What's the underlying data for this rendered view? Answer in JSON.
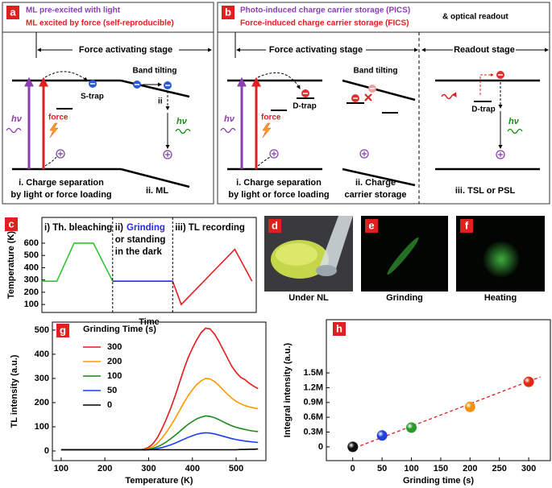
{
  "panel_a": {
    "label": "a",
    "titles": [
      "ML pre-excited with light",
      "ML excited by force (self-reproducible)"
    ],
    "stage": "Force activating stage",
    "band_tilting": "Band tilting",
    "trap": "S-trap",
    "step": "ii",
    "excitation": "hν",
    "force": "force",
    "emission": "hν",
    "caption_i": [
      "i. Charge separation",
      "by light or force loading"
    ],
    "caption_ii": "ii. ML"
  },
  "panel_b": {
    "label": "b",
    "titles": [
      "Photo-induced charge carrier storage (PICS)",
      "Force-induced charge carrier storage (FICS)"
    ],
    "readout_note": "& optical readout",
    "stage_force": "Force activating stage",
    "stage_readout": "Readout stage",
    "band_tilting": "Band tilting",
    "trap": "D-trap",
    "excitation": "hν",
    "force": "force",
    "caption_i": [
      "i. Charge separation",
      "by light or force loading"
    ],
    "caption_ii": [
      "ii. Charge",
      "carrier storage"
    ],
    "readout_trap": "D-trap",
    "emission": "hν",
    "caption_iii": "iii. TSL or PSL"
  },
  "photos": [
    {
      "label": "d",
      "caption": "Under NL"
    },
    {
      "label": "e",
      "caption": "Grinding"
    },
    {
      "label": "f",
      "caption": "Heating"
    }
  ],
  "chart_data": [
    {
      "type": "line",
      "label": "c",
      "ylabel": "Temperature (K)",
      "xlabel": "Time",
      "xlim": [
        0,
        10
      ],
      "ylim": [
        35,
        810
      ],
      "yticks": [
        100,
        200,
        300,
        400,
        500,
        600
      ],
      "phases": [
        {
          "lines": [
            "i) Th. bleaching"
          ]
        },
        {
          "lines": [
            "ii)",
            "or standing",
            "in the dark"
          ],
          "emphasis": "Grinding"
        },
        {
          "lines": [
            "iii) TL recording"
          ]
        }
      ],
      "series": [
        {
          "color": "#33c433",
          "x": [
            0,
            0.7,
            1.5,
            2.4,
            3.3
          ],
          "values": [
            290,
            290,
            600,
            600,
            290
          ]
        },
        {
          "color": "#2a2ae0",
          "x": [
            3.3,
            6.1
          ],
          "values": [
            290,
            290
          ]
        },
        {
          "color": "#e62020",
          "x": [
            6.1,
            6.5,
            9.0,
            9.8
          ],
          "values": [
            290,
            100,
            550,
            290
          ]
        }
      ]
    },
    {
      "type": "line",
      "label": "g",
      "ylabel": "TL intensity (a.u.)",
      "xlabel": "Temperature (K)",
      "legend_title": "Grinding Time (s)",
      "legend": "upper-left",
      "xlim": [
        80,
        568
      ],
      "ylim": [
        -40,
        533
      ],
      "xticks": [
        100,
        200,
        300,
        400,
        500
      ],
      "yticks": [
        0,
        100,
        200,
        300,
        400,
        500
      ],
      "x": [
        100,
        110,
        120,
        130,
        140,
        150,
        160,
        170,
        180,
        190,
        200,
        210,
        220,
        230,
        240,
        250,
        260,
        270,
        280,
        290,
        300,
        310,
        320,
        330,
        340,
        350,
        360,
        370,
        380,
        390,
        400,
        410,
        420,
        430,
        440,
        450,
        460,
        470,
        480,
        490,
        500,
        510,
        520,
        530,
        540,
        550
      ],
      "series": [
        {
          "name": "300",
          "color": "#e41a1c",
          "values": [
            5,
            5,
            5,
            5,
            5,
            5,
            5,
            5,
            5,
            5,
            5,
            5,
            5,
            5,
            5,
            5,
            5,
            5,
            5,
            8,
            15,
            30,
            55,
            90,
            130,
            175,
            225,
            280,
            335,
            385,
            425,
            460,
            490,
            508,
            505,
            485,
            455,
            420,
            385,
            350,
            325,
            305,
            295,
            280,
            268,
            258
          ]
        },
        {
          "name": "200",
          "color": "#ff9900",
          "values": [
            5,
            5,
            5,
            5,
            5,
            5,
            5,
            5,
            5,
            5,
            5,
            5,
            5,
            5,
            5,
            5,
            5,
            5,
            5,
            6,
            10,
            18,
            32,
            52,
            76,
            103,
            133,
            165,
            198,
            228,
            253,
            275,
            290,
            300,
            298,
            288,
            272,
            253,
            235,
            218,
            205,
            195,
            188,
            182,
            178,
            175
          ]
        },
        {
          "name": "100",
          "color": "#1a8a1a",
          "values": [
            5,
            5,
            5,
            5,
            5,
            5,
            5,
            5,
            5,
            5,
            5,
            5,
            5,
            5,
            5,
            5,
            5,
            5,
            5,
            5,
            7,
            11,
            17,
            26,
            37,
            50,
            64,
            79,
            95,
            110,
            122,
            133,
            140,
            145,
            143,
            138,
            130,
            121,
            112,
            104,
            98,
            93,
            89,
            85,
            82,
            80
          ]
        },
        {
          "name": "50",
          "color": "#1c3cff",
          "values": [
            5,
            5,
            5,
            5,
            5,
            5,
            5,
            5,
            5,
            5,
            5,
            5,
            5,
            5,
            5,
            5,
            5,
            5,
            5,
            4,
            5,
            7,
            10,
            14,
            19,
            25,
            32,
            40,
            48,
            56,
            63,
            69,
            73,
            75,
            74,
            71,
            66,
            61,
            56,
            51,
            47,
            44,
            41,
            39,
            37,
            35
          ]
        },
        {
          "name": "0",
          "color": "#000000",
          "values": [
            5,
            5,
            5,
            5,
            5,
            5,
            5,
            5,
            5,
            5,
            5,
            5,
            5,
            5,
            5,
            5,
            5,
            5,
            5,
            5,
            5,
            5,
            5,
            5,
            5,
            5,
            5,
            5,
            5,
            5,
            5,
            5,
            5,
            5,
            5,
            5,
            5,
            5,
            5,
            5,
            5,
            6,
            6,
            7,
            7,
            8
          ]
        }
      ]
    },
    {
      "type": "scatter",
      "label": "h",
      "ylabel": "Integral intensity (a.u.)",
      "xlabel": "Grinding time (s)",
      "xlim": [
        -45,
        337
      ],
      "ylim": [
        -280000,
        2580000
      ],
      "xticks": [
        0,
        50,
        100,
        150,
        200,
        250,
        300
      ],
      "yticks": [
        0,
        {
          "value": 300000,
          "label": "0.3M"
        },
        {
          "value": 600000,
          "label": "0.6M"
        },
        {
          "value": 900000,
          "label": "0.9M"
        },
        {
          "value": 1200000,
          "label": "1.2M"
        },
        {
          "value": 1500000,
          "label": "1.5M"
        }
      ],
      "x": [
        0,
        50,
        100,
        200,
        300
      ],
      "values": [
        0,
        230000,
        390000,
        810000,
        1320000
      ],
      "colors": [
        "#111111",
        "#2040e0",
        "#2a9a2a",
        "#f09010",
        "#e02a10"
      ],
      "fit": {
        "x": [
          -5,
          320
        ],
        "values": [
          -60000,
          1420000
        ],
        "color": "#e02020"
      }
    }
  ]
}
